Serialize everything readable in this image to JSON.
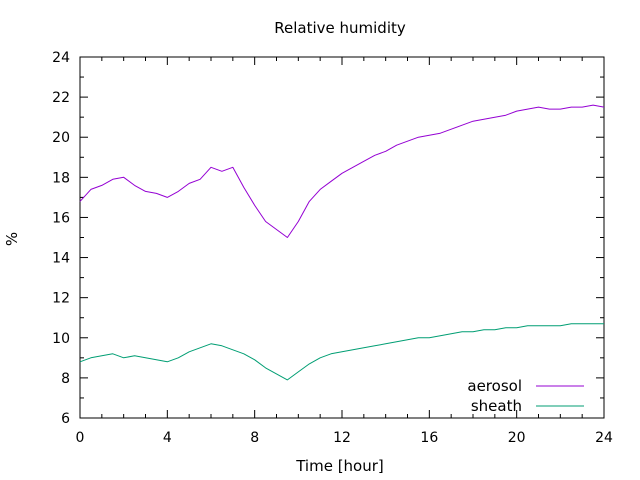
{
  "chart_data": {
    "type": "line",
    "title": "Relative humidity",
    "xlabel": "Time [hour]",
    "ylabel": "%",
    "xlim": [
      0,
      24
    ],
    "ylim": [
      6,
      24
    ],
    "xticks": [
      0,
      4,
      8,
      12,
      16,
      20,
      24
    ],
    "yticks": [
      6,
      8,
      10,
      12,
      14,
      16,
      18,
      20,
      22,
      24
    ],
    "x_minor_step": 1,
    "y_minor_step": 1,
    "grid": false,
    "legend_position": "bottom-right",
    "series": [
      {
        "name": "aerosol",
        "color": "#9400d3",
        "x": [
          0,
          0.5,
          1,
          1.5,
          2,
          2.5,
          3,
          3.5,
          4,
          4.5,
          5,
          5.5,
          6,
          6.5,
          7,
          7.5,
          8,
          8.5,
          9,
          9.5,
          10,
          10.5,
          11,
          11.5,
          12,
          12.5,
          13,
          13.5,
          14,
          14.5,
          15,
          15.5,
          16,
          16.5,
          17,
          17.5,
          18,
          18.5,
          19,
          19.5,
          20,
          20.5,
          21,
          21.5,
          22,
          22.5,
          23,
          23.5,
          24
        ],
        "y": [
          16.8,
          17.4,
          17.6,
          17.9,
          18.0,
          17.6,
          17.3,
          17.2,
          17.0,
          17.3,
          17.7,
          17.9,
          18.5,
          18.3,
          18.5,
          17.5,
          16.6,
          15.8,
          15.4,
          15.0,
          15.8,
          16.8,
          17.4,
          17.8,
          18.2,
          18.5,
          18.8,
          19.1,
          19.3,
          19.6,
          19.8,
          20.0,
          20.1,
          20.2,
          20.4,
          20.6,
          20.8,
          20.9,
          21.0,
          21.1,
          21.3,
          21.4,
          21.5,
          21.4,
          21.4,
          21.5,
          21.5,
          21.6,
          21.5
        ]
      },
      {
        "name": "sheath",
        "color": "#009e73",
        "x": [
          0,
          0.5,
          1,
          1.5,
          2,
          2.5,
          3,
          3.5,
          4,
          4.5,
          5,
          5.5,
          6,
          6.5,
          7,
          7.5,
          8,
          8.5,
          9,
          9.5,
          10,
          10.5,
          11,
          11.5,
          12,
          12.5,
          13,
          13.5,
          14,
          14.5,
          15,
          15.5,
          16,
          16.5,
          17,
          17.5,
          18,
          18.5,
          19,
          19.5,
          20,
          20.5,
          21,
          21.5,
          22,
          22.5,
          23,
          23.5,
          24
        ],
        "y": [
          8.8,
          9.0,
          9.1,
          9.2,
          9.0,
          9.1,
          9.0,
          8.9,
          8.8,
          9.0,
          9.3,
          9.5,
          9.7,
          9.6,
          9.4,
          9.2,
          8.9,
          8.5,
          8.2,
          7.9,
          8.3,
          8.7,
          9.0,
          9.2,
          9.3,
          9.4,
          9.5,
          9.6,
          9.7,
          9.8,
          9.9,
          10.0,
          10.0,
          10.1,
          10.2,
          10.3,
          10.3,
          10.4,
          10.4,
          10.5,
          10.5,
          10.6,
          10.6,
          10.6,
          10.6,
          10.7,
          10.7,
          10.7,
          10.7
        ]
      }
    ]
  }
}
